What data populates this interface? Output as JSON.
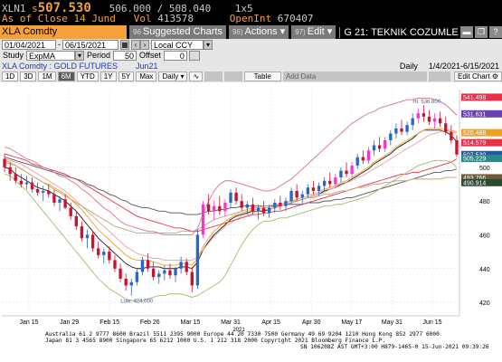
{
  "quote": {
    "ticker": "XLN1",
    "price_prefix": "s",
    "price": "507.530",
    "bid_ask": "506.000 / 508.040",
    "size": "1x5",
    "asof_label": "As of Close",
    "asof_date": "14 Jund",
    "vol_label": "Vol",
    "vol_value": "413578",
    "openint_label": "OpenInt",
    "openint_value": "670407"
  },
  "toolbar": {
    "security": "XLA Comdty",
    "suggested_num": "96",
    "suggested_label": "Suggested Charts",
    "actions_num": "96)",
    "actions_label": "Actions",
    "edit_num": "97)",
    "edit_label": "Edit",
    "news_label": "G 21: TEKNIK COZUMLEM..."
  },
  "datebar": {
    "start": "01/04/2021",
    "end": "06/15/2021",
    "currency": "Local CCY"
  },
  "studybar": {
    "study_label": "Study",
    "study_value": "ExpMA",
    "period_label": "Period",
    "period_value": "50",
    "offset_label": "Offset",
    "offset_value": "0"
  },
  "titlebar": {
    "left": "XLA Comdty : GOLD FUTURES",
    "contract": "Jun21",
    "freq": "Daily",
    "range": "1/4/2021-6/15/2021"
  },
  "periods": [
    "1D",
    "3D",
    "1M",
    "6M",
    "YTD",
    "1Y",
    "5Y",
    "Max"
  ],
  "active_period": "6M",
  "freq_select": "Daily",
  "table_label": "Table",
  "add_data_label": "Add Data",
  "edit_chart_label": "Edit Chart",
  "chart_data": {
    "type": "candlestick",
    "x_ticks": [
      "Jan 15",
      "Jan 29",
      "Feb 15",
      "Feb 26",
      "Mar 15",
      "Mar 31",
      "Apr 15",
      "Apr 30",
      "May 17",
      "May 31",
      "Jun 15"
    ],
    "year_label": "2021",
    "y_ticks": [
      420,
      440,
      460,
      480,
      500
    ],
    "ylim": [
      412,
      546
    ],
    "annotations": {
      "high": "Hi: 536.800",
      "low": "Low: 424.000"
    },
    "price_tags": [
      {
        "value": 541.498,
        "label": "541.498",
        "color": "#e8304a"
      },
      {
        "value": 531.631,
        "label": "531.631",
        "color": "#6a3fb0"
      },
      {
        "value": 520.488,
        "label": "520.488",
        "color": "#f0a020"
      },
      {
        "value": 514.579,
        "label": "514.579",
        "color": "#e8304a"
      },
      {
        "value": 507.53,
        "label": "507.530",
        "color": "#1d5aa8"
      },
      {
        "value": 505.229,
        "label": "505.229",
        "color": "#2a8a8a"
      },
      {
        "value": 493.766,
        "label": "493.766",
        "color": "#6f5a35"
      },
      {
        "value": 490.914,
        "label": "490.914",
        "color": "#2c4a2c"
      }
    ],
    "candles": [
      [
        505,
        508,
        497,
        500
      ],
      [
        500,
        503,
        492,
        496
      ],
      [
        496,
        500,
        490,
        492
      ],
      [
        492,
        496,
        488,
        490
      ],
      [
        490,
        495,
        487,
        491
      ],
      [
        491,
        494,
        485,
        487
      ],
      [
        487,
        491,
        483,
        485
      ],
      [
        485,
        489,
        480,
        486
      ],
      [
        486,
        490,
        482,
        484
      ],
      [
        484,
        487,
        477,
        479
      ],
      [
        479,
        483,
        474,
        481
      ],
      [
        481,
        484,
        475,
        476
      ],
      [
        476,
        479,
        469,
        471
      ],
      [
        471,
        474,
        463,
        465
      ],
      [
        465,
        468,
        456,
        458
      ],
      [
        458,
        463,
        452,
        460
      ],
      [
        460,
        462,
        450,
        452
      ],
      [
        452,
        456,
        446,
        448
      ],
      [
        448,
        452,
        443,
        450
      ],
      [
        450,
        453,
        443,
        445
      ],
      [
        445,
        448,
        438,
        440
      ],
      [
        440,
        443,
        432,
        434
      ],
      [
        434,
        437,
        427,
        430
      ],
      [
        430,
        434,
        424,
        432
      ],
      [
        432,
        440,
        430,
        438
      ],
      [
        438,
        447,
        436,
        445
      ],
      [
        445,
        449,
        438,
        440
      ],
      [
        440,
        444,
        433,
        435
      ],
      [
        435,
        439,
        431,
        437
      ],
      [
        437,
        442,
        433,
        439
      ],
      [
        439,
        443,
        434,
        436
      ],
      [
        436,
        441,
        432,
        440
      ],
      [
        440,
        447,
        437,
        444
      ],
      [
        444,
        446,
        436,
        438
      ],
      [
        438,
        441,
        426,
        430
      ],
      [
        430,
        463,
        428,
        460
      ],
      [
        460,
        480,
        458,
        478
      ],
      [
        478,
        484,
        472,
        474
      ],
      [
        474,
        480,
        469,
        477
      ],
      [
        477,
        483,
        472,
        474
      ],
      [
        474,
        481,
        471,
        479
      ],
      [
        479,
        487,
        476,
        485
      ],
      [
        485,
        488,
        478,
        480
      ],
      [
        480,
        484,
        474,
        476
      ],
      [
        476,
        480,
        472,
        478
      ],
      [
        478,
        482,
        472,
        474
      ],
      [
        474,
        478,
        469,
        476
      ],
      [
        476,
        480,
        471,
        473
      ],
      [
        473,
        478,
        470,
        476
      ],
      [
        476,
        481,
        473,
        479
      ],
      [
        479,
        483,
        475,
        477
      ],
      [
        477,
        482,
        474,
        480
      ],
      [
        480,
        488,
        478,
        486
      ],
      [
        486,
        490,
        480,
        482
      ],
      [
        482,
        486,
        478,
        484
      ],
      [
        484,
        490,
        482,
        488
      ],
      [
        488,
        492,
        484,
        486
      ],
      [
        486,
        491,
        483,
        489
      ],
      [
        489,
        494,
        486,
        492
      ],
      [
        492,
        497,
        488,
        490
      ],
      [
        490,
        496,
        488,
        494
      ],
      [
        494,
        500,
        491,
        498
      ],
      [
        498,
        503,
        494,
        496
      ],
      [
        496,
        503,
        494,
        501
      ],
      [
        501,
        508,
        499,
        506
      ],
      [
        506,
        510,
        502,
        504
      ],
      [
        504,
        512,
        502,
        510
      ],
      [
        510,
        516,
        507,
        513
      ],
      [
        513,
        518,
        509,
        511
      ],
      [
        511,
        518,
        509,
        516
      ],
      [
        516,
        522,
        513,
        520
      ],
      [
        520,
        526,
        517,
        523
      ],
      [
        523,
        528,
        519,
        521
      ],
      [
        521,
        527,
        519,
        525
      ],
      [
        525,
        532,
        522,
        529
      ],
      [
        529,
        535,
        526,
        532
      ],
      [
        532,
        536.8,
        527,
        530
      ],
      [
        530,
        534,
        525,
        527
      ],
      [
        527,
        532,
        523,
        529
      ],
      [
        529,
        533,
        524,
        526
      ],
      [
        526,
        530,
        519,
        521
      ],
      [
        521,
        525,
        514,
        516
      ],
      [
        516,
        519,
        506,
        507.53
      ]
    ],
    "series": [
      {
        "name": "",
        "color": "#1b1b1b",
        "values": [
          500,
          499,
          496,
          494,
          492,
          490,
          488,
          487,
          486,
          484,
          482,
          480,
          477,
          474,
          470,
          466,
          462,
          458,
          455,
          452,
          449,
          446,
          443,
          441,
          440,
          440,
          441,
          441,
          441,
          440,
          440,
          440,
          441,
          441,
          440,
          444,
          451,
          456,
          460,
          463,
          466,
          469,
          471,
          472,
          473,
          474,
          474,
          474,
          475,
          476,
          477,
          478,
          479,
          480,
          481,
          482,
          483,
          484,
          486,
          487,
          488,
          490,
          491,
          493,
          495,
          497,
          499,
          502,
          504,
          506,
          508,
          511,
          513,
          515,
          517,
          520,
          522,
          522,
          522,
          522,
          521,
          519,
          515
        ]
      },
      {
        "name": "",
        "color": "#555555",
        "values": [
          506,
          505,
          504,
          503,
          502,
          501,
          500,
          499,
          498,
          497,
          496,
          495,
          494,
          493,
          492,
          490,
          489,
          487,
          486,
          484,
          483,
          481,
          480,
          478,
          477,
          476,
          476,
          475,
          474,
          474,
          473,
          473,
          473,
          472,
          472,
          472,
          473,
          474,
          474,
          475,
          475,
          476,
          476,
          477,
          477,
          477,
          477,
          477,
          477,
          477,
          477,
          478,
          478,
          478,
          478,
          479,
          479,
          479,
          480,
          480,
          481,
          481,
          482,
          482,
          483,
          484,
          485,
          486,
          487,
          488,
          489,
          490,
          491,
          492,
          493,
          494,
          495,
          496,
          497,
          497,
          498,
          498,
          499
        ]
      },
      {
        "name": "",
        "color": "#e8a0a0",
        "values": [
          505,
          504,
          503,
          502,
          500,
          498,
          496,
          494,
          492,
          490,
          488,
          486,
          483,
          480,
          477,
          474,
          471,
          468,
          465,
          462,
          459,
          456,
          453,
          451,
          449,
          448,
          447,
          446,
          446,
          445,
          445,
          445,
          445,
          445,
          445,
          447,
          451,
          455,
          459,
          462,
          465,
          467,
          469,
          471,
          472,
          473,
          474,
          475,
          475,
          476,
          477,
          478,
          479,
          480,
          481,
          482,
          483,
          484,
          485,
          487,
          488,
          489,
          491,
          492,
          494,
          495,
          497,
          499,
          501,
          503,
          505,
          507,
          509,
          511,
          513,
          515,
          517,
          519,
          520,
          521,
          522,
          522,
          521
        ]
      },
      {
        "name": "",
        "color": "#f0a020",
        "values": [
          504,
          503,
          501,
          499,
          497,
          495,
          493,
          491,
          490,
          488,
          486,
          484,
          481,
          478,
          475,
          471,
          467,
          463,
          460,
          457,
          454,
          451,
          448,
          446,
          445,
          445,
          445,
          444,
          443,
          442,
          442,
          442,
          443,
          443,
          442,
          446,
          453,
          458,
          462,
          465,
          468,
          470,
          472,
          473,
          474,
          475,
          475,
          476,
          476,
          477,
          478,
          479,
          480,
          481,
          482,
          483,
          484,
          485,
          487,
          488,
          489,
          491,
          492,
          494,
          496,
          498,
          500,
          503,
          505,
          507,
          509,
          512,
          514,
          516,
          518,
          520,
          522,
          523,
          523,
          523,
          522,
          521,
          520.5
        ]
      },
      {
        "name": "",
        "color": "#e8304a",
        "values": [
          508,
          507,
          506,
          505,
          504,
          502,
          501,
          500,
          499,
          498,
          497,
          496,
          494,
          493,
          491,
          489,
          487,
          485,
          483,
          481,
          479,
          477,
          475,
          473,
          471,
          470,
          469,
          468,
          467,
          466,
          465,
          464,
          464,
          463,
          462,
          462,
          463,
          464,
          465,
          466,
          467,
          468,
          469,
          470,
          471,
          472,
          472,
          473,
          473,
          474,
          474,
          475,
          476,
          477,
          478,
          479,
          480,
          481,
          482,
          483,
          484,
          485,
          486,
          487,
          488,
          489,
          490,
          491,
          492,
          493,
          494,
          495,
          496,
          496,
          497,
          497,
          498,
          499,
          500,
          501,
          502,
          503,
          505
        ]
      },
      {
        "name": "",
        "color": "#c8a070",
        "values": [
          503,
          502,
          501,
          499,
          497,
          495,
          493,
          491,
          489,
          487,
          485,
          483,
          481,
          479,
          477,
          475,
          473,
          471,
          469,
          467,
          465,
          464,
          463,
          462,
          461,
          461,
          461,
          461,
          461,
          461,
          461,
          461,
          462,
          462,
          462,
          463,
          465,
          467,
          469,
          470,
          471,
          472,
          473,
          474,
          475,
          476,
          476,
          477,
          477,
          478,
          478,
          479,
          480,
          480,
          481,
          482,
          482,
          483,
          484,
          484,
          485,
          486,
          486,
          487,
          488,
          488,
          489,
          490,
          490,
          491,
          491,
          492,
          492,
          492,
          493,
          493,
          493,
          493,
          493,
          493,
          494,
          494,
          494
        ]
      },
      {
        "name": "",
        "color": "#d87090",
        "values": [
          512,
          511,
          509,
          507,
          505,
          504,
          502,
          500,
          499,
          497,
          495,
          494,
          492,
          490,
          487,
          485,
          482,
          479,
          476,
          474,
          471,
          468,
          466,
          465,
          464,
          463,
          462,
          462,
          461,
          460,
          460,
          460,
          460,
          460,
          460,
          464,
          472,
          480,
          486,
          490,
          492,
          492,
          491,
          490,
          489,
          488,
          487,
          486,
          486,
          487,
          489,
          491,
          493,
          496,
          499,
          502,
          505,
          508,
          511,
          514,
          517,
          520,
          523,
          526,
          528,
          530,
          532,
          533,
          535,
          536,
          537,
          538,
          539,
          540,
          540,
          541,
          541,
          541,
          540,
          539,
          537,
          534,
          531
        ]
      },
      {
        "name": "",
        "color": "#a8b870",
        "values": [
          496,
          495,
          492,
          489,
          486,
          482,
          478,
          474,
          470,
          466,
          462,
          458,
          454,
          450,
          446,
          442,
          438,
          434,
          431,
          428,
          426,
          424,
          422,
          421,
          421,
          421,
          422,
          423,
          424,
          424,
          425,
          425,
          425,
          424,
          423,
          424,
          426,
          428,
          430,
          432,
          436,
          442,
          448,
          454,
          459,
          463,
          466,
          468,
          468,
          469,
          470,
          470,
          471,
          472,
          473,
          474,
          475,
          476,
          477,
          477,
          478,
          478,
          479,
          480,
          481,
          482,
          483,
          485,
          487,
          489,
          491,
          493,
          495,
          497,
          499,
          501,
          502,
          503,
          504,
          504,
          504,
          503,
          500
        ]
      }
    ]
  },
  "footer": {
    "line1": "Australia 61 2 9777 8600 Brazil 5511 2395 9000 Europe 44 20 7330 7500 Germany 49 69 9204 1210 Hong Kong 852 2977 6000",
    "line2": "Japan 81 3 4565 8900        Singapore 65 6212 1000      U.S. 1 212 318 2000       Copyright 2021 Bloomberg Finance L.P.",
    "line3": "SN 106208Z AST  GMT+3:00 H879-1465-0 15-Jun-2021 09:39:26"
  }
}
